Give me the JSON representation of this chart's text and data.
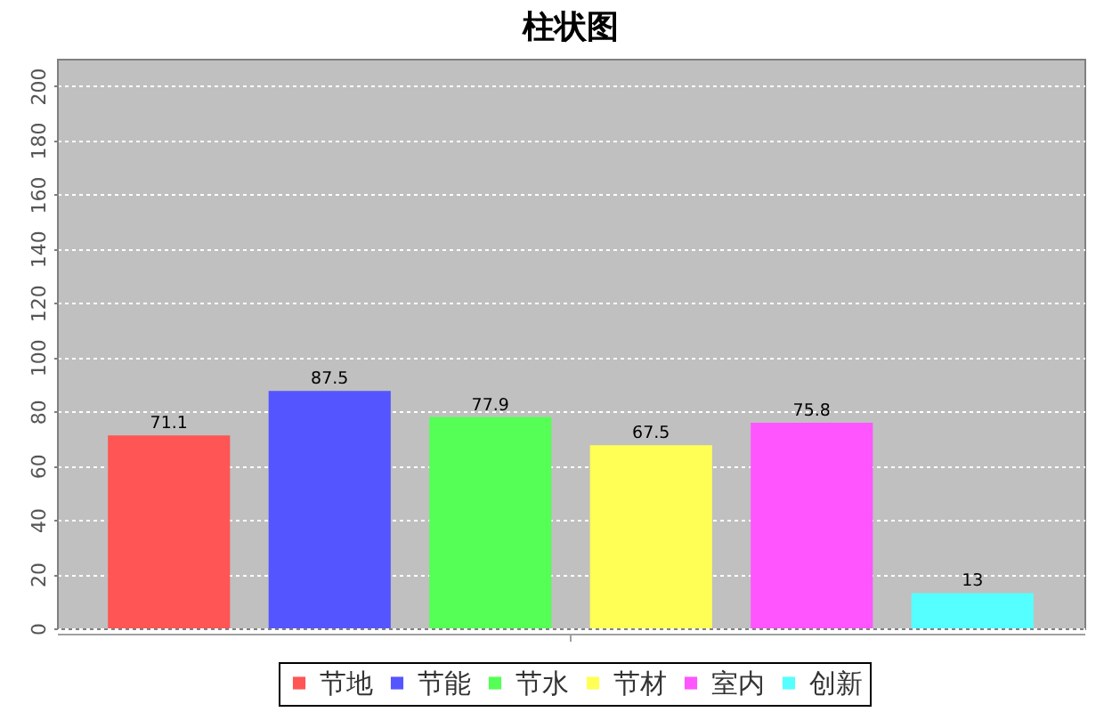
{
  "chart_data": {
    "type": "bar",
    "title": "柱状图",
    "categories": [
      null
    ],
    "series": [
      {
        "name": "节地",
        "color": "#ff5555",
        "values": [
          71.1
        ]
      },
      {
        "name": "节能",
        "color": "#5555ff",
        "values": [
          87.5
        ]
      },
      {
        "name": "节水",
        "color": "#55ff55",
        "values": [
          77.9
        ]
      },
      {
        "name": "节材",
        "color": "#ffff55",
        "values": [
          67.5
        ]
      },
      {
        "name": "室内",
        "color": "#ff55ff",
        "values": [
          75.8
        ]
      },
      {
        "name": "创新",
        "color": "#55ffff",
        "values": [
          13
        ]
      }
    ],
    "ylim": [
      0,
      210
    ],
    "yticks": [
      0,
      20,
      40,
      60,
      80,
      100,
      120,
      140,
      160,
      180,
      200
    ],
    "grid": "y",
    "legend": "bottom",
    "data_labels": true
  }
}
